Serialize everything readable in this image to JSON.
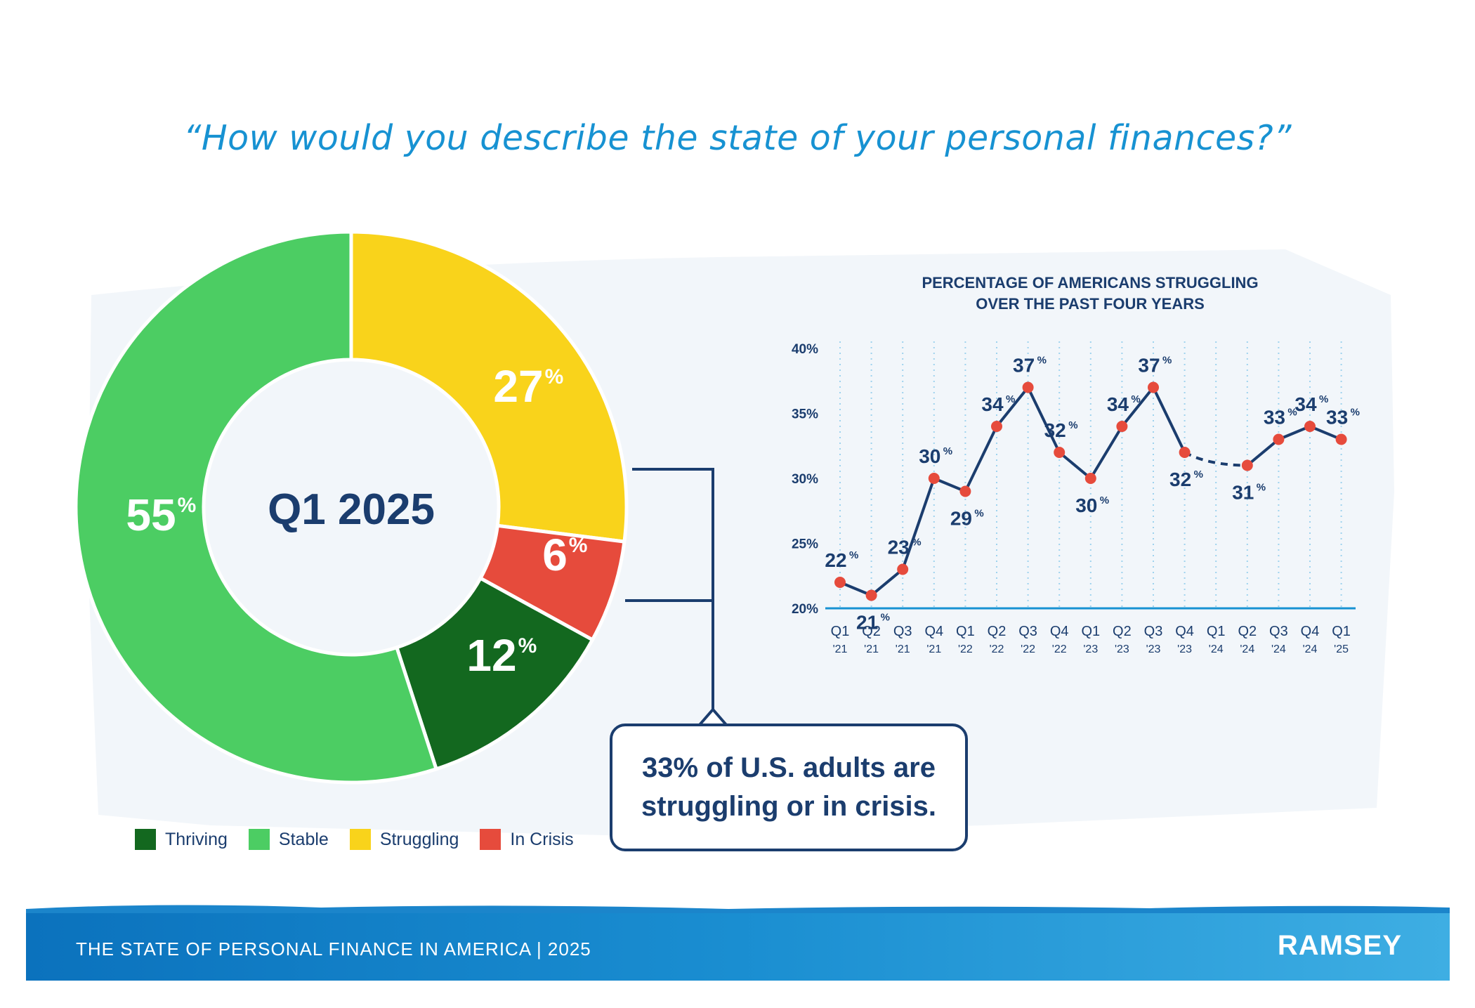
{
  "question": "“How would you describe the state of your personal finances?”",
  "donut": {
    "center_label": "Q1 2025",
    "percent_sign": "%",
    "segments": [
      {
        "name": "Stable",
        "value": 55,
        "label": "55",
        "color": "#4ccd63"
      },
      {
        "name": "Struggling",
        "value": 27,
        "label": "27",
        "color": "#f9d31b"
      },
      {
        "name": "In Crisis",
        "value": 6,
        "label": "6",
        "color": "#e64b3c"
      },
      {
        "name": "Thriving",
        "value": 12,
        "label": "12",
        "color": "#13681f"
      }
    ]
  },
  "legend": [
    {
      "label": "Thriving",
      "color": "#13681f"
    },
    {
      "label": "Stable",
      "color": "#4ccd63"
    },
    {
      "label": "Struggling",
      "color": "#f9d31b"
    },
    {
      "label": "In Crisis",
      "color": "#e64b3c"
    }
  ],
  "callout": {
    "line1": "33% of U.S. adults are",
    "line2": "struggling or in crisis."
  },
  "chart_data": {
    "type": "line",
    "title_line1": "PERCENTAGE OF AMERICANS STRUGGLING",
    "title_line2": "OVER THE PAST FOUR YEARS",
    "ylim": [
      20,
      40
    ],
    "yticks": [
      "20%",
      "25%",
      "30%",
      "35%",
      "40%"
    ],
    "ytick_values": [
      20,
      25,
      30,
      35,
      40
    ],
    "quarters": [
      "Q1",
      "Q2",
      "Q3",
      "Q4",
      "Q1",
      "Q2",
      "Q3",
      "Q4",
      "Q1",
      "Q2",
      "Q3",
      "Q4",
      "Q1",
      "Q2",
      "Q3",
      "Q4",
      "Q1"
    ],
    "years": [
      "'21",
      "'21",
      "'21",
      "'21",
      "'22",
      "'22",
      "'22",
      "'22",
      "'23",
      "'23",
      "'23",
      "'23",
      "'24",
      "'24",
      "'24",
      "'24",
      "'25"
    ],
    "values": [
      22,
      21,
      23,
      30,
      29,
      34,
      37,
      32,
      30,
      34,
      37,
      32,
      null,
      31,
      33,
      34,
      33
    ],
    "label_positions": [
      "above",
      "below",
      "above",
      "above",
      "below",
      "above",
      "above",
      "above",
      "below",
      "above",
      "above",
      "below",
      "none",
      "below",
      "above",
      "above",
      "above"
    ],
    "gap_note": "Q1 '24 not shown; dashed connector between Q4 '23 and Q2 '24",
    "line_color": "#1b3d6e",
    "marker_color": "#e64b3c",
    "grid": "dotted vertical"
  },
  "footer": {
    "title": "THE STATE OF PERSONAL FINANCE IN AMERICA | 2025",
    "brand": "RAMSEY"
  }
}
